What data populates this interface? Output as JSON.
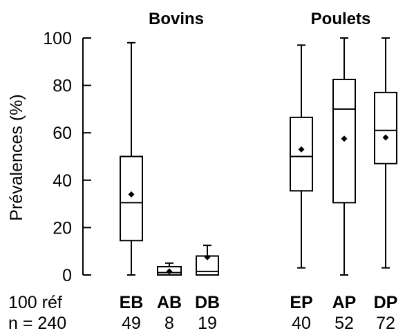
{
  "chart_data": {
    "type": "boxplot",
    "ylabel": "Prévalences (%)",
    "ylim": [
      0,
      100
    ],
    "yticks": [
      0,
      20,
      40,
      60,
      80,
      100
    ],
    "groups": [
      {
        "title": "Bovins",
        "categories": [
          "EB",
          "AB",
          "DB"
        ]
      },
      {
        "title": "Poulets",
        "categories": [
          "EP",
          "AP",
          "DP"
        ]
      }
    ],
    "reference": {
      "label": "100 réf",
      "n_label": "n = 240"
    },
    "boxes": [
      {
        "category": "EB",
        "n": "49",
        "min": 0,
        "q1": 14.5,
        "median": 30.5,
        "q3": 50,
        "max": 98,
        "mean": 34
      },
      {
        "category": "AB",
        "n": "8",
        "min": 0,
        "q1": 0,
        "median": 1,
        "q3": 3.5,
        "max": 5,
        "mean": 1.5
      },
      {
        "category": "DB",
        "n": "19",
        "min": 0,
        "q1": 0,
        "median": 1.5,
        "q3": 8,
        "max": 12.5,
        "mean": 7.5
      },
      {
        "category": "EP",
        "n": "40",
        "min": 3,
        "q1": 35.5,
        "median": 50,
        "q3": 66.5,
        "max": 97,
        "mean": 53
      },
      {
        "category": "AP",
        "n": "52",
        "min": 0,
        "q1": 30.5,
        "median": 70,
        "q3": 82.5,
        "max": 100,
        "mean": 57.5
      },
      {
        "category": "DP",
        "n": "72",
        "min": 3,
        "q1": 47,
        "median": 61,
        "q3": 77,
        "max": 100,
        "mean": 58
      }
    ]
  }
}
